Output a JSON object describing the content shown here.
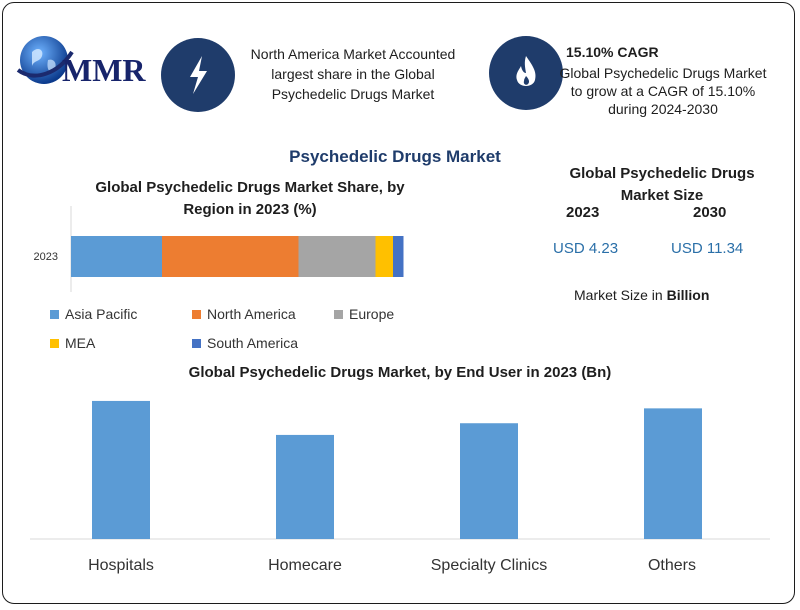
{
  "header": {
    "logo_text": "MMR",
    "info1": {
      "line1": "North America Market Accounted",
      "line2": "largest share in the Global",
      "line3": "Psychedelic Drugs Market",
      "icon": "lightning-bolt-icon"
    },
    "info2": {
      "title": "15.10% CAGR",
      "line1": "Global Psychedelic Drugs Market",
      "line2": "to grow at a CAGR of 15.10%",
      "line3": "during 2024-2030",
      "icon": "flame-icon"
    }
  },
  "main_title": "Psychedelic Drugs Market",
  "market_size": {
    "title_line1": "Global Psychedelic Drugs",
    "title_line2": "Market Size",
    "year1": "2023",
    "year2": "2030",
    "value1": "USD 4.23",
    "value2": "USD 11.34",
    "note_prefix": "Market Size in ",
    "note_bold": "Billion"
  },
  "colors": {
    "asia_pacific": "#5b9bd5",
    "north_america": "#ed7d31",
    "europe": "#a5a5a5",
    "mea": "#ffc000",
    "south_america": "#4472c4",
    "bar": "#5b9bd5",
    "badge": "#1f3c6b"
  },
  "chart_data": [
    {
      "type": "bar",
      "orientation": "horizontal-stacked",
      "title_line1": "Global Psychedelic Drugs Market Share, by",
      "title_line2": "Region in 2023 (%)",
      "categories": [
        "2023"
      ],
      "series": [
        {
          "name": "Asia Pacific",
          "values": [
            26
          ]
        },
        {
          "name": "North America",
          "values": [
            39
          ]
        },
        {
          "name": "Europe",
          "values": [
            22
          ]
        },
        {
          "name": "MEA",
          "values": [
            5
          ]
        },
        {
          "name": "South America",
          "values": [
            3
          ]
        }
      ],
      "xlim": [
        0,
        100
      ],
      "legend": "bottom",
      "grid": false
    },
    {
      "type": "bar",
      "title": "Global Psychedelic Drugs Market, by End User in 2023 (Bn)",
      "categories": [
        "Hospitals",
        "Homecare",
        "Specialty Clinics",
        "Others"
      ],
      "values": [
        1.3,
        0.98,
        1.09,
        1.23
      ],
      "ylim": [
        0,
        1.45
      ],
      "grid": false,
      "legend": "none"
    }
  ]
}
